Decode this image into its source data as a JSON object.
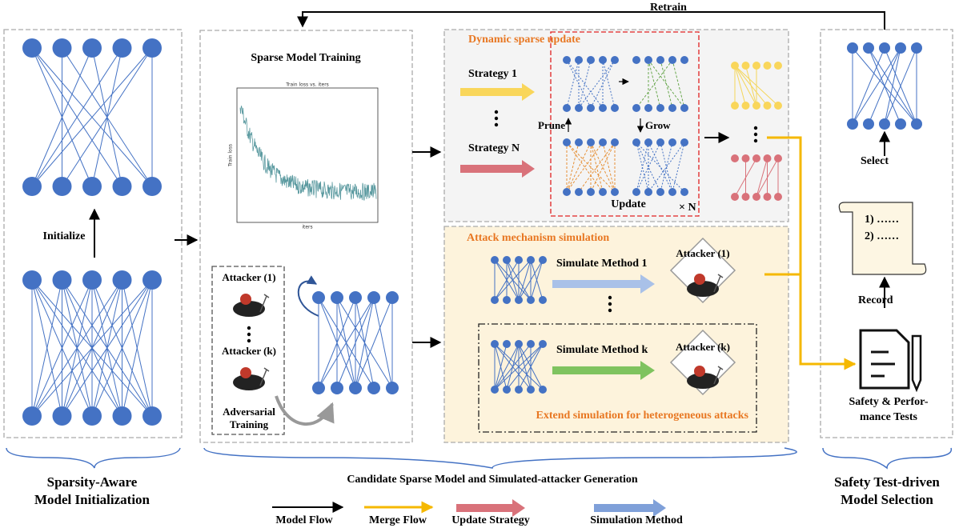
{
  "retrain": "Retrain",
  "initialize": "Initialize",
  "sparse_model_training": "Sparse Model Training",
  "plot": {
    "title": "Train loss  vs. iters",
    "ylabel": "Train loss",
    "xlabel": "iters"
  },
  "dynamic_sparse_update": "Dynamic sparse update",
  "strategy_1": "Strategy 1",
  "strategy_n": "Strategy N",
  "prune": "Prune",
  "grow": "Grow",
  "update": "Update",
  "times_n": "× N",
  "attack_mechanism_simulation": "Attack mechanism simulation",
  "simulate_method_1": "Simulate Method 1",
  "simulate_method_k": "Simulate Method k",
  "attacker_1": "Attacker (1)",
  "attacker_k": "Attacker (k)",
  "adversarial_training": [
    "Adversarial",
    "Training"
  ],
  "extend_simulation": "Extend simulation for heterogeneous attacks",
  "select": "Select",
  "record": "Record",
  "record_items": [
    "1) ……",
    "2) ……"
  ],
  "tests": [
    "Safety & Perfor-",
    "mance  Tests"
  ],
  "section_labels": {
    "left": [
      "Sparsity-Aware",
      "Model Initialization"
    ],
    "middle": "Candidate Sparse Model and Simulated-attacker Generation",
    "right": [
      "Safety Test-driven",
      "Model Selection"
    ]
  },
  "legend": [
    "Model Flow",
    "Merge Flow",
    "Update Strategy",
    "Simulation  Method"
  ]
}
